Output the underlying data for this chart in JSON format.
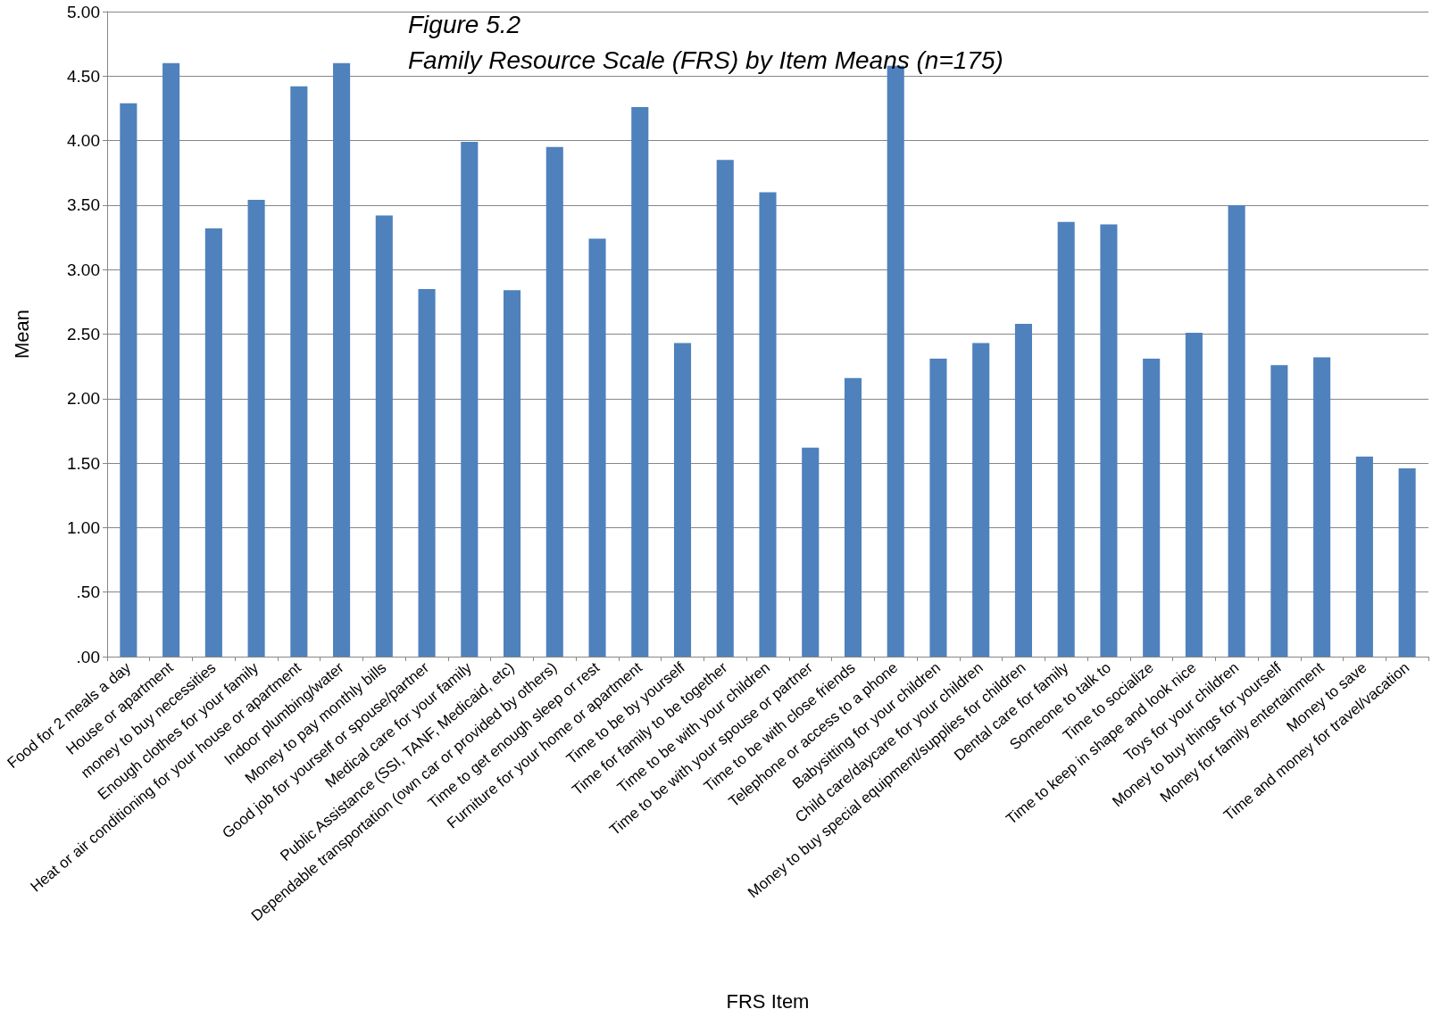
{
  "chart_data": {
    "type": "bar",
    "title": "Figure 5.2",
    "subtitle": "Family Resource Scale (FRS) by Item Means (n=175)",
    "xlabel": "FRS Item",
    "ylabel": "Mean",
    "categories": [
      "Food for 2 meals a day",
      "House or apartment",
      "money to buy necessities",
      "Enough clothes for your family",
      "Heat or air conditioning for your house or apartment",
      "Indoor plumbing/water",
      "Money to pay monthly bills",
      "Good job for yourself or spouse/partner",
      "Medical care for your family",
      "Public Assistance (SSI, TANF, Medicaid, etc)",
      "Dependable transportation (own car or provided by others)",
      "Time to get enough sleep or rest",
      "Furniture for your home or apartment",
      "Time to be by yourself",
      "Time for family to be together",
      "Time to be with your children",
      "Time to be with your spouse or partner",
      "Time to be with close friends",
      "Telephone or access to a phone",
      "Babysitting for your children",
      "Child care/daycare for your children",
      "Money to buy special equipment/supplies for children",
      "Dental care for family",
      "Someone to talk to",
      "Time to socialize",
      "Time to keep in shape and look nice",
      "Toys for your children",
      "Money to buy things for yourself",
      "Money for family entertainment",
      "Money to save",
      "Time and money for travel/vacation"
    ],
    "values": [
      4.29,
      4.6,
      3.32,
      3.54,
      4.42,
      4.6,
      3.42,
      2.85,
      3.99,
      2.84,
      3.95,
      3.24,
      4.26,
      2.43,
      3.85,
      3.6,
      1.62,
      2.16,
      4.58,
      2.31,
      2.43,
      2.58,
      3.37,
      3.35,
      2.31,
      2.51,
      3.5,
      2.26,
      2.32,
      1.55,
      1.46
    ],
    "color": "#4f81bd",
    "ylim": [
      0,
      5
    ],
    "yticks": [
      {
        "value": 0,
        "label": ".00"
      },
      {
        "value": 0.5,
        "label": ".50"
      },
      {
        "value": 1,
        "label": "1.00"
      },
      {
        "value": 1.5,
        "label": "1.50"
      },
      {
        "value": 2,
        "label": "2.00"
      },
      {
        "value": 2.5,
        "label": "2.50"
      },
      {
        "value": 3,
        "label": "3.00"
      },
      {
        "value": 3.5,
        "label": "3.50"
      },
      {
        "value": 4,
        "label": "4.00"
      },
      {
        "value": 4.5,
        "label": "4.50"
      },
      {
        "value": 5,
        "label": "5.00"
      }
    ],
    "grid": "y"
  }
}
